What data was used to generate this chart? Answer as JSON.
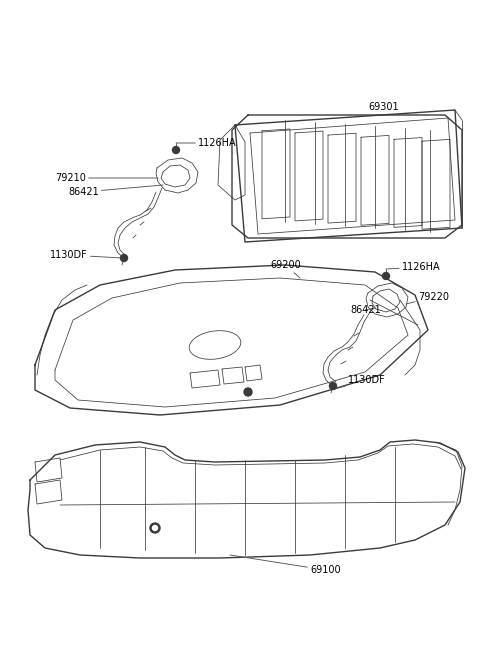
{
  "bg_color": "#ffffff",
  "line_color": "#3a3a3a",
  "label_color": "#000000",
  "label_fontsize": 7.0,
  "lw_main": 1.0,
  "lw_thin": 0.55,
  "figw": 4.8,
  "figh": 6.55,
  "dpi": 100,
  "xlim": [
    0,
    480
  ],
  "ylim": [
    0,
    655
  ]
}
